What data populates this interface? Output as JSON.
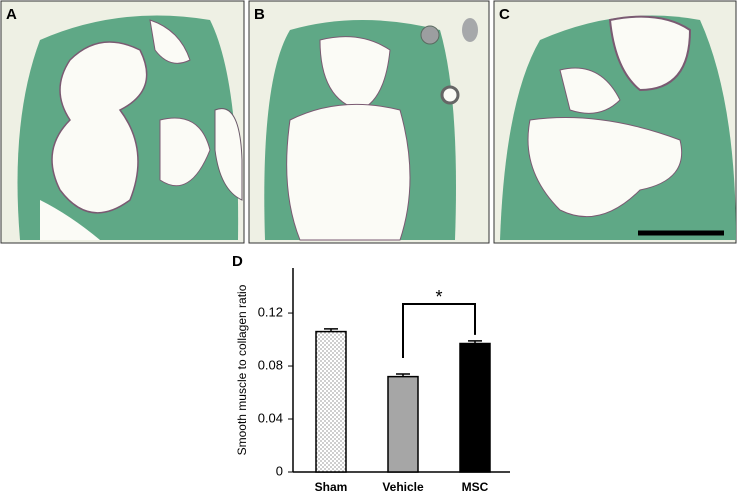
{
  "panels": [
    "A",
    "B",
    "C"
  ],
  "chart_data": {
    "type": "bar",
    "panel_label": "D",
    "y_label": "Smooth muscle to collagen ratio",
    "categories": [
      "Sham",
      "Vehicle",
      "MSC"
    ],
    "values": [
      0.106,
      0.072,
      0.097
    ],
    "errors": [
      0.002,
      0.002,
      0.002
    ],
    "colors": [
      "#ffffff",
      "#a6a6a6",
      "#000000"
    ],
    "hatches": [
      "dots",
      null,
      null
    ],
    "ylim": [
      0,
      0.154
    ],
    "yticks": [
      0,
      0.04,
      0.08,
      0.12
    ],
    "significance": "*"
  }
}
